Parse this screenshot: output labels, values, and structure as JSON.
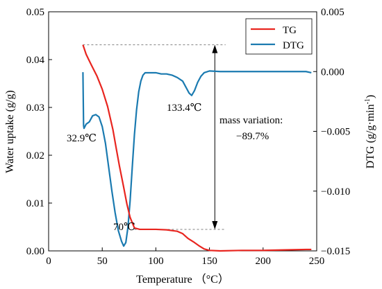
{
  "chart_data": {
    "type": "line",
    "xlabel": "Temperature （°C）",
    "ylabel_left": "Water uptake (g/g)",
    "ylabel_right": "DTG (g/g·min",
    "ylabel_right_sup": "-1",
    "ylabel_right_close": ")",
    "xlim": [
      0,
      250
    ],
    "ylim_left": [
      0,
      0.05
    ],
    "ylim_right": [
      -0.015,
      0.005
    ],
    "x_ticks": [
      {
        "v": 0,
        "label": "0"
      },
      {
        "v": 50,
        "label": "50"
      },
      {
        "v": 100,
        "label": "100"
      },
      {
        "v": 150,
        "label": "150"
      },
      {
        "v": 200,
        "label": "200"
      },
      {
        "v": 250,
        "label": "250"
      }
    ],
    "y_ticks_left": [
      {
        "v": 0,
        "label": "0.00"
      },
      {
        "v": 0.01,
        "label": "0.01"
      },
      {
        "v": 0.02,
        "label": "0.02"
      },
      {
        "v": 0.03,
        "label": "0.03"
      },
      {
        "v": 0.04,
        "label": "0.04"
      },
      {
        "v": 0.05,
        "label": "0.05"
      }
    ],
    "y_ticks_right": [
      {
        "v": 0.005,
        "label": "0.005"
      },
      {
        "v": 0.0,
        "label": "0.000"
      },
      {
        "v": -0.005,
        "label": "−0.005"
      },
      {
        "v": -0.01,
        "label": "−0.010"
      },
      {
        "v": -0.015,
        "label": "−0.015"
      }
    ],
    "legend": {
      "placement": "top-right",
      "entries": [
        {
          "name": "TG",
          "color": "#e8251f"
        },
        {
          "name": "DTG",
          "color": "#1a7ab0"
        }
      ]
    },
    "series": [
      {
        "name": "TG",
        "axis": "left",
        "color": "#e8251f",
        "x": [
          32,
          35,
          40,
          45,
          50,
          55,
          60,
          63,
          66,
          70,
          73,
          76,
          80,
          85,
          90,
          100,
          110,
          120,
          125,
          130,
          135,
          140,
          145,
          150,
          160,
          180,
          200,
          220,
          240,
          245
        ],
        "y": [
          0.0431,
          0.0411,
          0.0388,
          0.0366,
          0.0338,
          0.0302,
          0.0253,
          0.0215,
          0.0178,
          0.0133,
          0.0098,
          0.007,
          0.0048,
          0.0045,
          0.0045,
          0.0045,
          0.0044,
          0.0041,
          0.0036,
          0.0026,
          0.0019,
          0.0011,
          0.0004,
          0.0001,
          0.0,
          0.0001,
          0.0001,
          0.0002,
          0.0003,
          0.0003
        ]
      },
      {
        "name": "DTG",
        "axis": "right",
        "color": "#1a7ab0",
        "x": [
          32,
          32.6,
          33,
          35,
          38,
          41,
          44,
          47,
          50,
          53,
          56,
          59,
          62,
          65,
          68,
          70,
          72,
          74,
          76,
          78,
          80,
          82,
          84,
          86,
          88,
          90,
          95,
          100,
          105,
          110,
          115,
          120,
          125,
          128,
          131,
          133.4,
          136,
          139,
          142,
          145,
          150,
          160,
          180,
          200,
          220,
          240,
          245
        ],
        "y": [
          -5e-05,
          -0.0045,
          -0.00475,
          -0.0044,
          -0.0042,
          -0.0037,
          -0.0036,
          -0.0038,
          -0.0046,
          -0.006,
          -0.008,
          -0.01,
          -0.0118,
          -0.0133,
          -0.0142,
          -0.0146,
          -0.0143,
          -0.013,
          -0.0108,
          -0.008,
          -0.0053,
          -0.0032,
          -0.0017,
          -0.0008,
          -0.0003,
          -0.0001,
          -0.0001,
          -0.0001,
          -0.0002,
          -0.0002,
          -0.0003,
          -0.0005,
          -0.0008,
          -0.0013,
          -0.0018,
          -0.002,
          -0.0016,
          -0.0009,
          -0.0004,
          -0.0001,
          5e-05,
          0.0,
          0.0,
          0.0,
          0.0,
          0.0,
          -0.0001
        ]
      }
    ],
    "annotations": {
      "label_32": "32.9℃",
      "label_70": "70℃",
      "label_133": "133.4℃",
      "mass_variation_line1": "mass variation:",
      "mass_variation_line2": "−89.7%"
    },
    "reference_lines": {
      "upper_y": 0.0431,
      "lower_y": 0.0045,
      "x_start_upper": 32,
      "x_start_lower": 80,
      "x_end": 165,
      "arrow_x": 155
    }
  }
}
